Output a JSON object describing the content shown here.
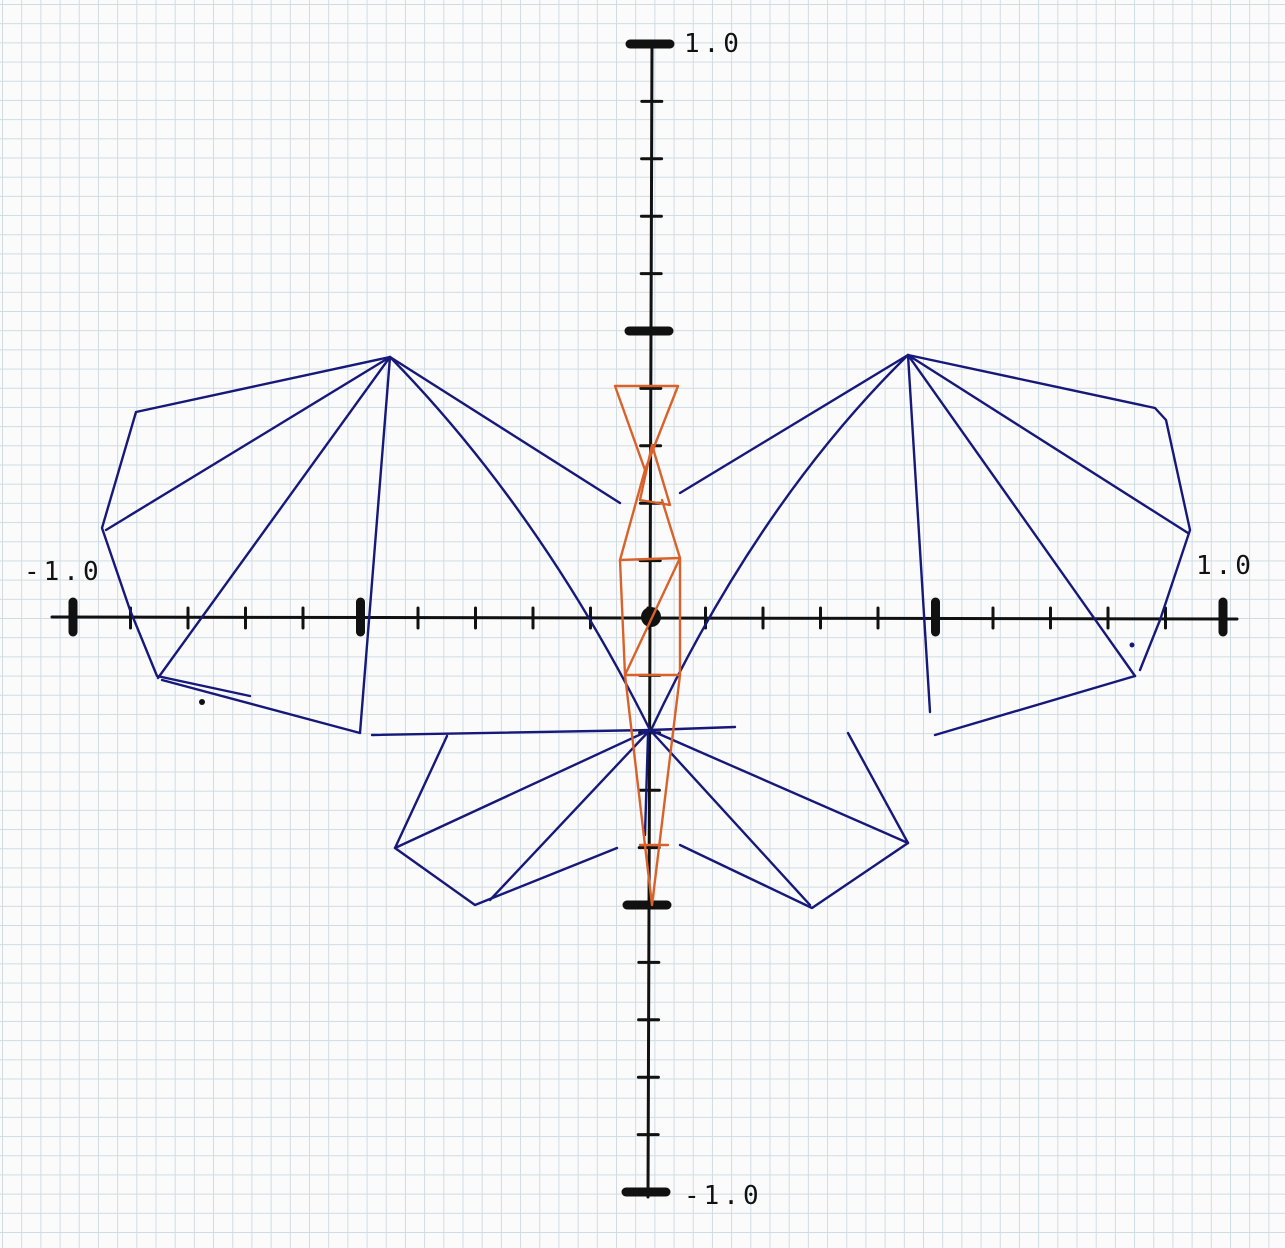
{
  "diagram": {
    "axes": {
      "x_min_label": "-1.0",
      "x_max_label": "1.0",
      "y_max_label": "1.0",
      "y_min_label": "-1.0"
    },
    "colors": {
      "grid": "#cfdce4",
      "axes": "#111111",
      "wing_strokes": "#16197a",
      "body_strokes": "#d9622b"
    }
  }
}
